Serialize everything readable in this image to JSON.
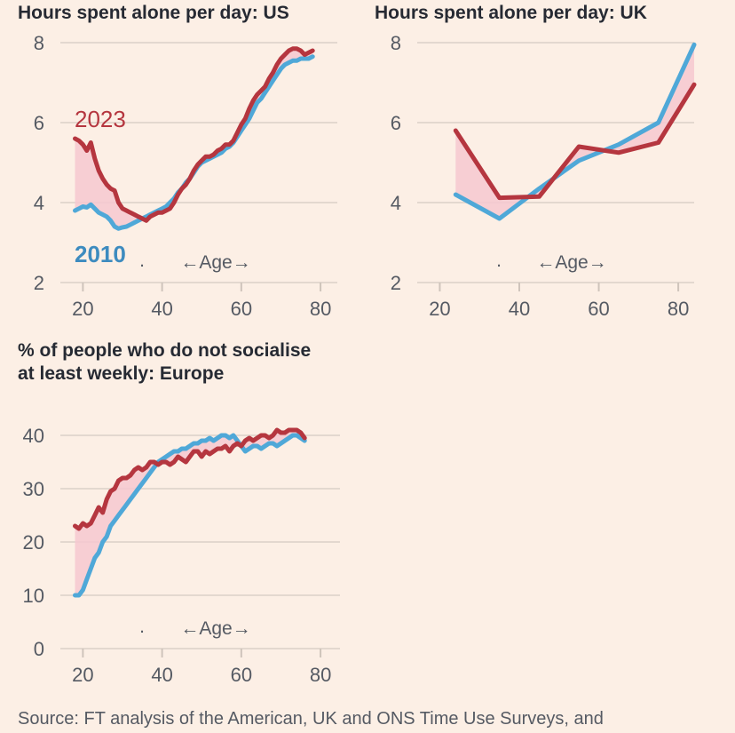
{
  "colors": {
    "background": "#fcefe5",
    "series_2023": "#b5363f",
    "series_2010": "#4fa8d8",
    "fill_gap": "#f6c8d0",
    "grid": "#e3d8cf"
  },
  "source": "Source: FT analysis of the American, UK and ONS Time Use Surveys, and",
  "chart_data": [
    {
      "id": "us",
      "type": "line",
      "title": "Hours spent alone per day: US",
      "xlabel": "←Age→",
      "ylabel": "",
      "xlim": [
        17,
        82
      ],
      "ylim": [
        2,
        8
      ],
      "x_ticks": [
        20,
        40,
        60,
        80
      ],
      "y_ticks": [
        2,
        4,
        6,
        8
      ],
      "series_labels": {
        "2023": "2023",
        "2010": "2010"
      },
      "legend_marker": ".",
      "series": [
        {
          "name": "2023",
          "x": [
            18,
            19,
            20,
            21,
            22,
            23,
            24,
            25,
            26,
            27,
            28,
            29,
            30,
            31,
            32,
            33,
            34,
            35,
            36,
            37,
            38,
            39,
            40,
            41,
            42,
            43,
            44,
            45,
            46,
            47,
            48,
            49,
            50,
            51,
            52,
            53,
            54,
            55,
            56,
            57,
            58,
            59,
            60,
            61,
            62,
            63,
            64,
            65,
            66,
            67,
            68,
            69,
            70,
            71,
            72,
            73,
            74,
            75,
            76,
            77,
            78
          ],
          "values": [
            5.6,
            5.55,
            5.45,
            5.3,
            5.5,
            5.1,
            4.8,
            4.6,
            4.45,
            4.35,
            4.3,
            4.0,
            3.85,
            3.8,
            3.75,
            3.7,
            3.65,
            3.6,
            3.55,
            3.65,
            3.7,
            3.75,
            3.75,
            3.8,
            3.85,
            4.0,
            4.2,
            4.35,
            4.45,
            4.6,
            4.8,
            4.95,
            5.05,
            5.15,
            5.15,
            5.2,
            5.3,
            5.35,
            5.45,
            5.45,
            5.55,
            5.75,
            5.95,
            6.1,
            6.35,
            6.55,
            6.7,
            6.8,
            6.9,
            7.1,
            7.25,
            7.45,
            7.6,
            7.7,
            7.8,
            7.85,
            7.85,
            7.8,
            7.7,
            7.75,
            7.8
          ]
        },
        {
          "name": "2010",
          "x": [
            18,
            19,
            20,
            21,
            22,
            23,
            24,
            25,
            26,
            27,
            28,
            29,
            30,
            31,
            32,
            33,
            34,
            35,
            36,
            37,
            38,
            39,
            40,
            41,
            42,
            43,
            44,
            45,
            46,
            47,
            48,
            49,
            50,
            51,
            52,
            53,
            54,
            55,
            56,
            57,
            58,
            59,
            60,
            61,
            62,
            63,
            64,
            65,
            66,
            67,
            68,
            69,
            70,
            71,
            72,
            73,
            74,
            75,
            76,
            77,
            78
          ],
          "values": [
            3.8,
            3.85,
            3.9,
            3.88,
            3.95,
            3.85,
            3.75,
            3.7,
            3.65,
            3.55,
            3.4,
            3.35,
            3.38,
            3.4,
            3.45,
            3.5,
            3.55,
            3.6,
            3.65,
            3.7,
            3.75,
            3.8,
            3.85,
            3.9,
            4.0,
            4.1,
            4.25,
            4.35,
            4.5,
            4.6,
            4.75,
            4.9,
            5.0,
            5.05,
            5.1,
            5.15,
            5.2,
            5.25,
            5.35,
            5.4,
            5.5,
            5.65,
            5.8,
            5.95,
            6.1,
            6.3,
            6.5,
            6.6,
            6.75,
            6.9,
            7.05,
            7.2,
            7.35,
            7.45,
            7.5,
            7.55,
            7.55,
            7.6,
            7.6,
            7.6,
            7.65
          ]
        }
      ]
    },
    {
      "id": "uk",
      "type": "line",
      "title": "Hours spent alone per day: UK",
      "xlabel": "←Age→",
      "ylabel": "",
      "xlim": [
        17,
        84
      ],
      "ylim": [
        2,
        8
      ],
      "x_ticks": [
        20,
        40,
        60,
        80
      ],
      "y_ticks": [
        2,
        4,
        6,
        8
      ],
      "legend_marker": ".",
      "series": [
        {
          "name": "2023",
          "x": [
            24,
            35,
            45,
            55,
            65,
            75,
            84
          ],
          "values": [
            5.8,
            4.12,
            4.15,
            5.4,
            5.25,
            5.5,
            6.95
          ]
        },
        {
          "name": "2010",
          "x": [
            24,
            35,
            45,
            55,
            65,
            75,
            84
          ],
          "values": [
            4.2,
            3.6,
            4.35,
            5.05,
            5.45,
            6.0,
            7.95
          ]
        }
      ]
    },
    {
      "id": "eu",
      "type": "line",
      "title": "% of people who do not socialise at least weekly: Europe",
      "title_lines": [
        "% of people who do not socialise",
        "at least weekly: Europe"
      ],
      "xlabel": "←Age→",
      "ylabel": "",
      "xlim": [
        17,
        82
      ],
      "ylim": [
        0,
        40
      ],
      "x_ticks": [
        20,
        40,
        60,
        80
      ],
      "y_ticks": [
        0,
        10,
        20,
        30,
        40
      ],
      "legend_marker": ".",
      "series": [
        {
          "name": "2023",
          "x": [
            18,
            19,
            20,
            21,
            22,
            23,
            24,
            25,
            26,
            27,
            28,
            29,
            30,
            31,
            32,
            33,
            34,
            35,
            36,
            37,
            38,
            39,
            40,
            41,
            42,
            43,
            44,
            45,
            46,
            47,
            48,
            49,
            50,
            51,
            52,
            53,
            54,
            55,
            56,
            57,
            58,
            59,
            60,
            61,
            62,
            63,
            64,
            65,
            66,
            67,
            68,
            69,
            70,
            71,
            72,
            73,
            74,
            75,
            76
          ],
          "values": [
            23,
            22.5,
            23.5,
            23,
            23.5,
            25,
            26.5,
            25.5,
            28,
            29.5,
            30,
            31.5,
            32,
            32,
            32.5,
            33.5,
            34,
            33.5,
            34,
            35,
            35,
            34.5,
            35,
            35,
            34.5,
            35,
            36,
            35.5,
            35,
            36,
            37,
            37,
            36,
            37,
            36.5,
            37,
            37.5,
            37.5,
            38,
            37,
            38,
            38.5,
            38,
            39,
            39.5,
            39,
            39.5,
            40,
            40,
            39.5,
            40,
            41,
            40.5,
            40.5,
            41,
            41,
            41,
            40.5,
            39.5
          ]
        },
        {
          "name": "2010",
          "x": [
            18,
            19,
            20,
            21,
            22,
            23,
            24,
            25,
            26,
            27,
            28,
            29,
            30,
            31,
            32,
            33,
            34,
            35,
            36,
            37,
            38,
            39,
            40,
            41,
            42,
            43,
            44,
            45,
            46,
            47,
            48,
            49,
            50,
            51,
            52,
            53,
            54,
            55,
            56,
            57,
            58,
            59,
            60,
            61,
            62,
            63,
            64,
            65,
            66,
            67,
            68,
            69,
            70,
            71,
            72,
            73,
            74,
            75,
            76
          ],
          "values": [
            10,
            10,
            11,
            13,
            15,
            17,
            18,
            20,
            21,
            23,
            24,
            25,
            26,
            27,
            28,
            29,
            30,
            31,
            32,
            33,
            34,
            35,
            35.5,
            36,
            36.5,
            37,
            37,
            37.5,
            37.5,
            38,
            38.5,
            38.5,
            39,
            39,
            39.5,
            39,
            39.5,
            40,
            40,
            39.5,
            40,
            39,
            38,
            37,
            37.5,
            38,
            38,
            37.5,
            38,
            38.5,
            38.5,
            38,
            38.5,
            39,
            39.5,
            40,
            40,
            39.5,
            39
          ]
        }
      ]
    }
  ]
}
